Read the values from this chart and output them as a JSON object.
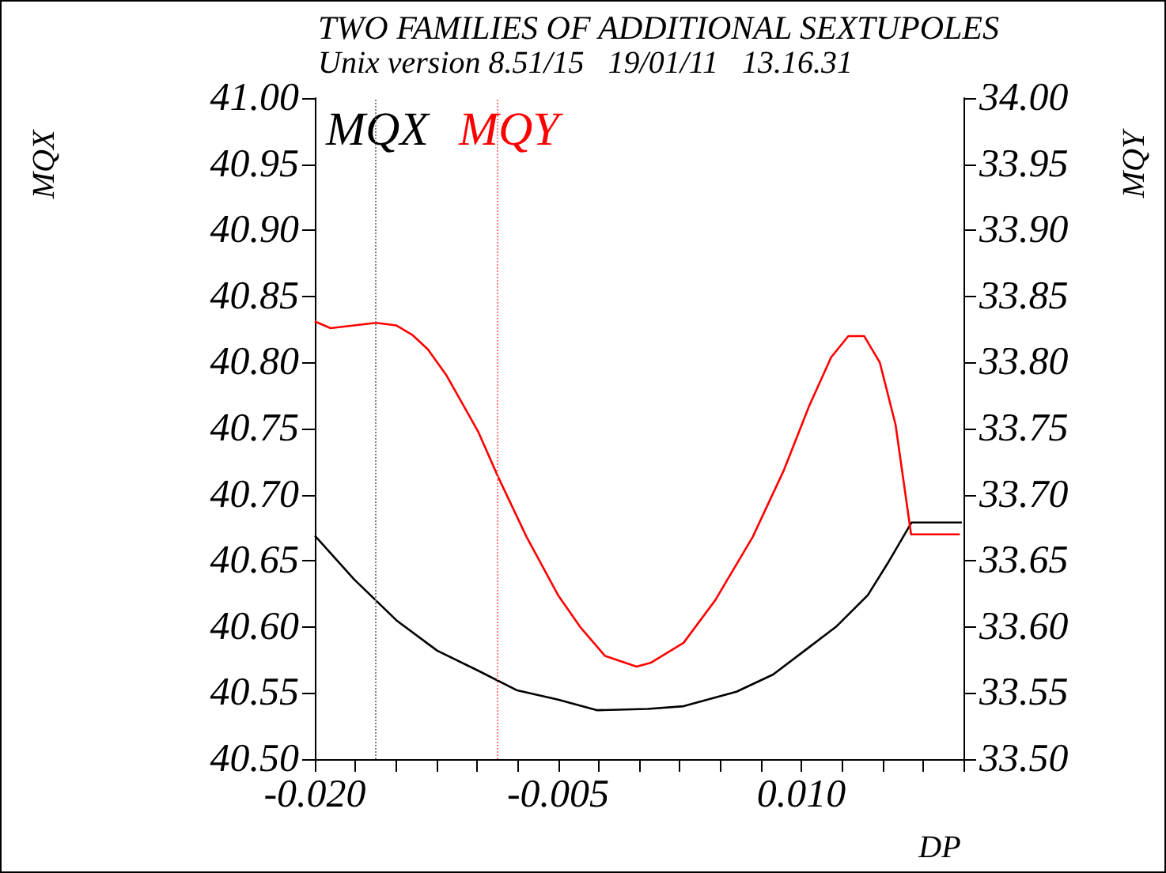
{
  "chart_data": {
    "type": "line",
    "title": "TWO FAMILIES OF ADDITIONAL SEXTUPOLES",
    "subtitle": "Unix version 8.51/15   19/01/11   13.16.31",
    "xlabel": "DP",
    "ylabel": "MQX",
    "y2label": "MQY",
    "series": [
      {
        "name": "MQX",
        "color": "#000000",
        "x": [
          -0.02,
          -0.01758,
          -0.01623,
          -0.01497,
          -0.01245,
          -0.00994,
          -0.00752,
          -0.005,
          -0.00258,
          0.00052,
          0.00274,
          0.006,
          0.00826,
          0.0102,
          0.01213,
          0.0141,
          0.01532,
          0.0168,
          0.0199
        ],
        "values": [
          40.669,
          40.636,
          40.62,
          40.605,
          40.582,
          40.567,
          40.552,
          40.545,
          40.537,
          40.538,
          40.54,
          40.551,
          40.564,
          40.582,
          40.6,
          40.624,
          40.648,
          40.679,
          40.679
        ]
      },
      {
        "name": "MQY",
        "color": "#ff0000",
        "axis": "y2",
        "x": [
          -0.02,
          -0.01903,
          -0.01623,
          -0.01497,
          -0.014,
          -0.01303,
          -0.01187,
          -0.00994,
          -0.00868,
          -0.00694,
          -0.005,
          -0.00364,
          -0.0021,
          -0.00016,
          0.00074,
          0.00274,
          0.00468,
          0.007,
          0.00894,
          0.01048,
          0.01184,
          0.0129,
          0.01387,
          0.01484,
          0.01581,
          0.01677,
          0.01977
        ],
        "values": [
          33.831,
          33.826,
          33.83,
          33.828,
          33.821,
          33.81,
          33.79,
          33.748,
          33.713,
          33.668,
          33.624,
          33.6,
          33.578,
          33.57,
          33.573,
          33.588,
          33.62,
          33.668,
          33.719,
          33.767,
          33.804,
          33.82,
          33.82,
          33.8,
          33.753,
          33.67,
          33.67
        ]
      }
    ],
    "xlim": [
      -0.02,
      0.02
    ],
    "xticks": [
      {
        "value": -0.02,
        "label": "-0.020"
      },
      {
        "value": -0.0175,
        "label": null
      },
      {
        "value": -0.015,
        "label": null
      },
      {
        "value": -0.0125,
        "label": null
      },
      {
        "value": -0.01,
        "label": null
      },
      {
        "value": -0.0075,
        "label": null
      },
      {
        "value": -0.005,
        "label": "-0.005"
      },
      {
        "value": -0.0025,
        "label": null
      },
      {
        "value": 0,
        "label": null
      },
      {
        "value": 0.0025,
        "label": null
      },
      {
        "value": 0.005,
        "label": null
      },
      {
        "value": 0.0075,
        "label": null
      },
      {
        "value": 0.01,
        "label": "0.010"
      },
      {
        "value": 0.0125,
        "label": null
      },
      {
        "value": 0.015,
        "label": null
      },
      {
        "value": 0.0175,
        "label": null
      },
      {
        "value": 0.02,
        "label": null
      }
    ],
    "ylim": [
      40.5,
      41.0
    ],
    "yticks": [
      {
        "value": 40.5,
        "label": "40.50"
      },
      {
        "value": 40.55,
        "label": "40.55"
      },
      {
        "value": 40.6,
        "label": "40.60"
      },
      {
        "value": 40.65,
        "label": "40.65"
      },
      {
        "value": 40.7,
        "label": "40.70"
      },
      {
        "value": 40.75,
        "label": "40.75"
      },
      {
        "value": 40.8,
        "label": "40.80"
      },
      {
        "value": 40.85,
        "label": "40.85"
      },
      {
        "value": 40.9,
        "label": "40.90"
      },
      {
        "value": 40.95,
        "label": "40.95"
      },
      {
        "value": 41.0,
        "label": "41.00"
      }
    ],
    "y2lim": [
      33.5,
      34.0
    ],
    "y2ticks": [
      {
        "value": 33.5,
        "label": "33.50"
      },
      {
        "value": 33.55,
        "label": "33.55"
      },
      {
        "value": 33.6,
        "label": "33.60"
      },
      {
        "value": 33.65,
        "label": "33.65"
      },
      {
        "value": 33.7,
        "label": "33.70"
      },
      {
        "value": 33.75,
        "label": "33.75"
      },
      {
        "value": 33.8,
        "label": "33.80"
      },
      {
        "value": 33.85,
        "label": "33.85"
      },
      {
        "value": 33.9,
        "label": "33.90"
      },
      {
        "value": 33.95,
        "label": "33.95"
      },
      {
        "value": 34.0,
        "label": "34.00"
      }
    ],
    "ref_lines": [
      {
        "axis": "x",
        "value": -0.0163,
        "color": "#808080",
        "line_style": "dotted"
      },
      {
        "axis": "x",
        "value": -0.0088,
        "color": "#ff8080",
        "line_style": "dotted"
      }
    ],
    "legend": "top left",
    "grid": false,
    "marker": "none",
    "line_style": "solid"
  }
}
